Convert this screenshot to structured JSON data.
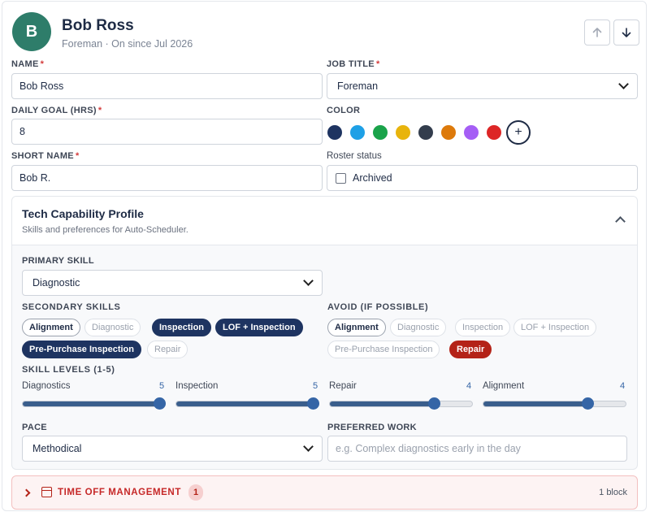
{
  "profile": {
    "avatar_letter": "B",
    "avatar_color": "#2e7d6a",
    "name": "Bob Ross",
    "subtitle": "Foreman · On since Jul 2026"
  },
  "nav": {
    "up_icon": "arrow-up-icon",
    "down_icon": "arrow-down-icon"
  },
  "form": {
    "name_label": "NAME",
    "name_value": "Bob Ross",
    "job_title_label": "JOB TITLE",
    "job_title_value": "Foreman",
    "daily_goal_label": "DAILY GOAL (HRS)",
    "daily_goal_value": "8",
    "color_label": "COLOR",
    "colors": [
      "#1e3461",
      "#1ea0e6",
      "#1aa34a",
      "#e8b40c",
      "#333d4d",
      "#dd7a0b",
      "#a55ef5",
      "#dd2626"
    ],
    "short_name_label": "SHORT NAME",
    "short_name_value": "Bob R.",
    "roster_status_label": "Roster status",
    "archived_label": "Archived",
    "required_mark": "*"
  },
  "capability": {
    "title": "Tech Capability Profile",
    "subtitle": "Skills and preferences for Auto-Scheduler.",
    "primary_skill_label": "PRIMARY SKILL",
    "primary_skill_value": "Diagnostic",
    "secondary_label": "SECONDARY SKILLS",
    "secondary": [
      {
        "label": "Alignment",
        "state": "outlined"
      },
      {
        "label": "Diagnostic",
        "state": "off"
      },
      {
        "label": "Inspection",
        "state": "on"
      },
      {
        "label": "LOF + Inspection",
        "state": "on"
      },
      {
        "label": "Pre-Purchase Inspection",
        "state": "on"
      },
      {
        "label": "Repair",
        "state": "off"
      }
    ],
    "avoid_label": "AVOID (IF POSSIBLE)",
    "avoid": [
      {
        "label": "Alignment",
        "state": "outlined"
      },
      {
        "label": "Diagnostic",
        "state": "off"
      },
      {
        "label": "Inspection",
        "state": "off"
      },
      {
        "label": "LOF + Inspection",
        "state": "off"
      },
      {
        "label": "Pre-Purchase Inspection",
        "state": "off"
      },
      {
        "label": "Repair",
        "state": "red"
      }
    ],
    "skill_levels_label": "SKILL LEVELS (1-5)",
    "skill_levels": [
      {
        "name": "Diagnostics",
        "value": 5
      },
      {
        "name": "Inspection",
        "value": 5
      },
      {
        "name": "Repair",
        "value": 4
      },
      {
        "name": "Alignment",
        "value": 4
      }
    ],
    "pace_label": "PACE",
    "pace_value": "Methodical",
    "preferred_work_label": "PREFERRED WORK",
    "preferred_work_placeholder": "e.g. Complex diagnostics early in the day"
  },
  "time_off": {
    "title": "TIME OFF MANAGEMENT",
    "badge": "1",
    "count": "1 block"
  }
}
